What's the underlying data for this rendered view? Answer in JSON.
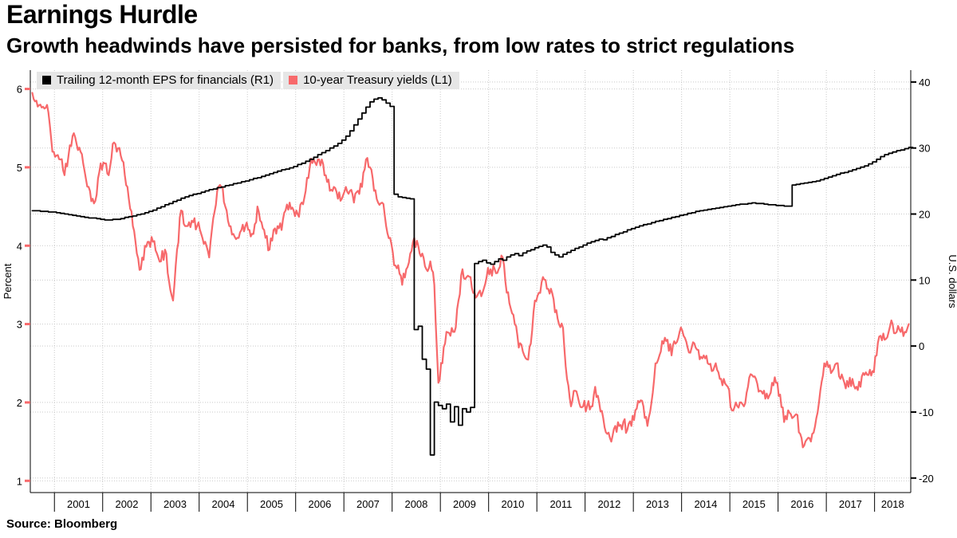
{
  "header": {
    "title": "Earnings Hurdle",
    "subtitle": "Growth headwinds have persisted for banks, from low rates to strict regulations"
  },
  "legend": [
    {
      "label": "Trailing 12-month EPS for financials (R1)",
      "color": "#000000"
    },
    {
      "label": "10-year Treasury yields (L1)",
      "color": "#f7696b"
    }
  ],
  "source": "Source: Bloomberg",
  "chart_data": {
    "type": "line",
    "title": "Earnings Hurdle",
    "subtitle": "Growth headwinds have persisted for banks, from low rates to strict regulations",
    "grid": true,
    "legend_position": "top-left",
    "x_axis": {
      "domain": [
        2000.5,
        2018.75
      ],
      "year_ticks": [
        2001,
        2002,
        2003,
        2004,
        2005,
        2006,
        2007,
        2008,
        2009,
        2010,
        2011,
        2012,
        2013,
        2014,
        2015,
        2016,
        2017,
        2018
      ],
      "year_labels": [
        "2001",
        "2002",
        "2003",
        "2004",
        "2005",
        "2006",
        "2007",
        "2008",
        "2009",
        "2010",
        "2011",
        "2012",
        "2013",
        "2014",
        "2015",
        "2016",
        "2017",
        "2018"
      ]
    },
    "left_axis": {
      "label": "Percent",
      "ticks": [
        1,
        2,
        3,
        4,
        5,
        6
      ],
      "domain": [
        0.85,
        6.24
      ],
      "tick_color": "#f7696b"
    },
    "right_axis": {
      "label": "U.S. dollars",
      "ticks": [
        -20,
        -10,
        0,
        10,
        20,
        30,
        40
      ],
      "domain": [
        -22.2,
        41.8
      ],
      "tick_color": "#000000"
    },
    "series": [
      {
        "id": "treasury-series",
        "name": "10-year Treasury yields",
        "axis": "left",
        "style": "line",
        "color": "#f7696b",
        "stroke_width": 2.2,
        "start_x": 2000.542,
        "dx": 0.083333,
        "values": [
          5.95,
          5.85,
          5.8,
          5.75,
          5.7,
          5.2,
          5.15,
          5.1,
          4.9,
          5.15,
          5.4,
          5.3,
          5.2,
          4.95,
          4.75,
          4.6,
          4.65,
          5.05,
          5.05,
          4.9,
          5.3,
          5.2,
          5.15,
          4.9,
          4.6,
          4.25,
          3.9,
          3.7,
          4.0,
          4.05,
          4.05,
          3.9,
          3.8,
          3.95,
          3.55,
          3.3,
          3.95,
          4.45,
          4.25,
          4.3,
          4.3,
          4.25,
          4.15,
          4.05,
          3.85,
          4.35,
          4.7,
          4.75,
          4.5,
          4.25,
          4.15,
          4.1,
          4.2,
          4.25,
          4.2,
          4.15,
          4.5,
          4.3,
          4.1,
          3.95,
          4.2,
          4.25,
          4.2,
          4.45,
          4.55,
          4.45,
          4.4,
          4.55,
          4.7,
          5.0,
          5.1,
          5.1,
          5.1,
          4.9,
          4.7,
          4.75,
          4.6,
          4.6,
          4.75,
          4.7,
          4.55,
          4.7,
          4.75,
          5.1,
          5.0,
          4.7,
          4.55,
          4.55,
          4.25,
          4.1,
          3.75,
          3.75,
          3.5,
          3.7,
          3.9,
          4.1,
          4.0,
          3.9,
          3.7,
          3.8,
          3.5,
          2.25,
          2.5,
          2.9,
          2.85,
          2.9,
          3.3,
          3.7,
          3.6,
          3.6,
          3.4,
          3.4,
          3.4,
          3.6,
          3.7,
          3.7,
          3.7,
          3.85,
          3.4,
          3.2,
          3.0,
          2.7,
          2.65,
          2.55,
          2.75,
          3.3,
          3.4,
          3.6,
          3.45,
          3.45,
          3.15,
          3.0,
          2.95,
          2.3,
          1.95,
          2.15,
          2.0,
          1.95,
          1.95,
          1.95,
          2.2,
          2.0,
          1.8,
          1.6,
          1.5,
          1.7,
          1.7,
          1.75,
          1.65,
          1.7,
          1.9,
          2.0,
          1.95,
          1.7,
          2.0,
          2.5,
          2.6,
          2.75,
          2.8,
          2.6,
          2.75,
          2.9,
          2.85,
          2.7,
          2.7,
          2.7,
          2.55,
          2.6,
          2.5,
          2.4,
          2.5,
          2.3,
          2.3,
          2.2,
          1.9,
          2.0,
          2.0,
          1.95,
          2.2,
          2.35,
          2.3,
          2.15,
          2.15,
          2.05,
          2.25,
          2.25,
          2.1,
          1.75,
          1.9,
          1.8,
          1.85,
          1.6,
          1.45,
          1.55,
          1.6,
          1.8,
          2.15,
          2.5,
          2.45,
          2.4,
          2.5,
          2.3,
          2.25,
          2.2,
          2.3,
          2.2,
          2.2,
          2.35,
          2.35,
          2.4,
          2.6,
          2.85,
          2.8,
          2.9,
          3.0,
          2.9,
          2.9,
          2.9,
          3.0
        ]
      },
      {
        "id": "eps-series",
        "name": "Trailing 12-month EPS for financials",
        "axis": "right",
        "style": "step",
        "color": "#000000",
        "stroke_width": 1.8,
        "start_x": 2000.542,
        "dx": 0.083333,
        "values": [
          20.5,
          20.5,
          20.4,
          20.4,
          20.3,
          20.3,
          20.2,
          20.1,
          20.0,
          19.9,
          19.8,
          19.7,
          19.6,
          19.5,
          19.4,
          19.4,
          19.3,
          19.2,
          19.1,
          19.1,
          19.2,
          19.2,
          19.3,
          19.5,
          19.6,
          19.7,
          19.9,
          20.0,
          20.2,
          20.4,
          20.6,
          20.9,
          21.1,
          21.4,
          21.6,
          21.9,
          22.1,
          22.4,
          22.6,
          22.8,
          23.0,
          23.1,
          23.3,
          23.5,
          23.7,
          23.8,
          24.0,
          24.1,
          24.3,
          24.4,
          24.6,
          24.7,
          24.9,
          25.0,
          25.2,
          25.4,
          25.5,
          25.7,
          25.9,
          26.1,
          26.3,
          26.5,
          26.7,
          26.8,
          27.0,
          27.2,
          27.5,
          27.7,
          28.0,
          28.3,
          28.6,
          29.0,
          29.3,
          29.6,
          30.0,
          30.3,
          30.7,
          31.2,
          31.8,
          32.6,
          33.5,
          34.4,
          35.3,
          36.2,
          37.0,
          37.4,
          37.6,
          37.3,
          36.8,
          36.3,
          23.0,
          22.6,
          22.5,
          22.4,
          22.3,
          2.5,
          3.0,
          -2.0,
          -3.5,
          -16.5,
          -8.5,
          -9.0,
          -9.5,
          -8.8,
          -11.5,
          -9.2,
          -12.0,
          -9.5,
          -10.0,
          -9.3,
          12.5,
          12.8,
          13.0,
          12.6,
          12.4,
          12.8,
          13.2,
          13.0,
          13.5,
          13.8,
          14.0,
          13.7,
          14.1,
          14.4,
          14.6,
          14.9,
          15.1,
          15.3,
          15.0,
          14.2,
          13.8,
          13.5,
          13.9,
          14.2,
          14.5,
          14.8,
          15.0,
          15.3,
          15.6,
          15.8,
          16.0,
          16.2,
          16.1,
          16.4,
          16.6,
          16.9,
          17.1,
          17.3,
          17.6,
          17.8,
          18.0,
          18.2,
          18.4,
          18.5,
          18.7,
          18.9,
          19.0,
          19.2,
          19.3,
          19.5,
          19.6,
          19.8,
          19.9,
          20.1,
          20.2,
          20.4,
          20.5,
          20.6,
          20.7,
          20.8,
          20.9,
          21.0,
          21.1,
          21.2,
          21.3,
          21.4,
          21.5,
          21.5,
          21.6,
          21.7,
          21.6,
          21.6,
          21.5,
          21.4,
          21.4,
          21.3,
          21.3,
          21.2,
          21.2,
          24.4,
          24.5,
          24.6,
          24.7,
          24.8,
          24.9,
          25.0,
          25.2,
          25.4,
          25.6,
          25.8,
          26.0,
          26.2,
          26.3,
          26.5,
          26.7,
          26.9,
          27.1,
          27.3,
          27.6,
          27.9,
          28.3,
          28.7,
          29.0,
          29.2,
          29.4,
          29.6,
          29.7,
          29.9,
          30.1
        ]
      }
    ]
  }
}
